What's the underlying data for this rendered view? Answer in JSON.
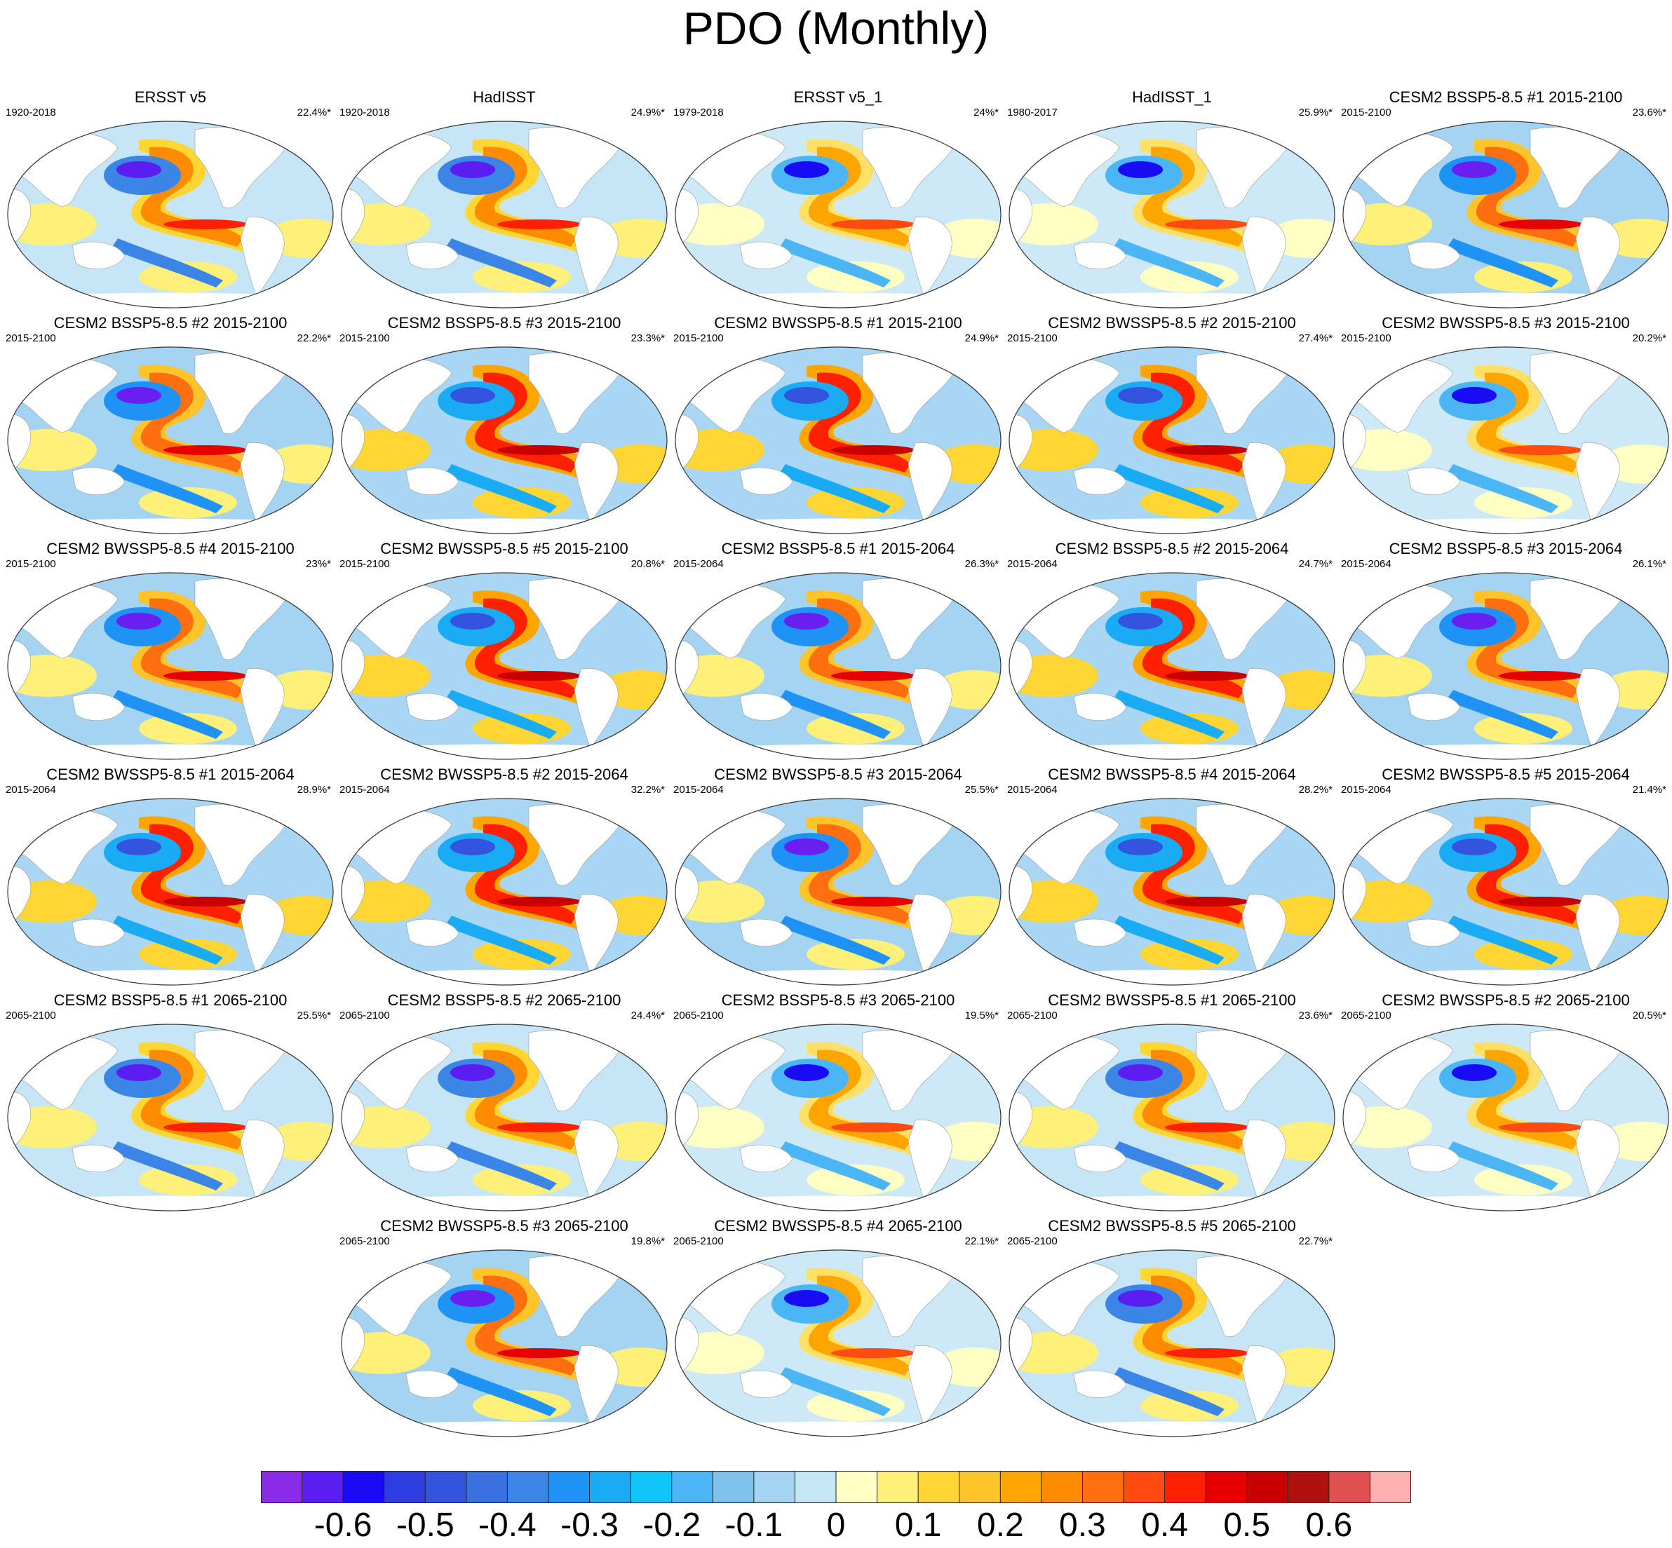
{
  "title": "PDO (Monthly)",
  "colorbar": {
    "colors": [
      "#8b2be8",
      "#5a1ef0",
      "#1a0bf5",
      "#2d3ee0",
      "#3454e0",
      "#3a6fe0",
      "#3a85e6",
      "#1f93f5",
      "#1aabf5",
      "#10c6f8",
      "#4ab6f3",
      "#7ec2ec",
      "#a4d4f2",
      "#c4e6f6",
      "#ffffc4",
      "#fff07a",
      "#ffd633",
      "#ffc42a",
      "#ffa500",
      "#ff8c00",
      "#ff6f10",
      "#ff4a10",
      "#ff2000",
      "#e60000",
      "#c80000",
      "#b01010",
      "#e05050",
      "#ffb0b0"
    ],
    "labels": [
      "-0.6",
      "-0.5",
      "-0.4",
      "-0.3",
      "-0.2",
      "-0.1",
      "0",
      "0.1",
      "0.2",
      "0.3",
      "0.4",
      "0.5",
      "0.6"
    ]
  },
  "panels": [
    {
      "title": "ERSST v5",
      "period": "1920-2018",
      "pct": "22.4%*",
      "style": 0
    },
    {
      "title": "HadISST",
      "period": "1920-2018",
      "pct": "24.9%*",
      "style": 0
    },
    {
      "title": "ERSST v5_1",
      "period": "1979-2018",
      "pct": "24%*",
      "style": 1
    },
    {
      "title": "HadISST_1",
      "period": "1980-2017",
      "pct": "25.9%*",
      "style": 1
    },
    {
      "title": "CESM2 BSSP5-8.5 #1 2015-2100",
      "period": "2015-2100",
      "pct": "23.6%*",
      "style": 2
    },
    {
      "title": "CESM2 BSSP5-8.5 #2 2015-2100",
      "period": "2015-2100",
      "pct": "22.2%*",
      "style": 2
    },
    {
      "title": "CESM2 BSSP5-8.5 #3 2015-2100",
      "period": "2015-2100",
      "pct": "23.3%*",
      "style": 3
    },
    {
      "title": "CESM2 BWSSP5-8.5 #1 2015-2100",
      "period": "2015-2100",
      "pct": "24.9%*",
      "style": 3
    },
    {
      "title": "CESM2 BWSSP5-8.5 #2 2015-2100",
      "period": "2015-2100",
      "pct": "27.4%*",
      "style": 3
    },
    {
      "title": "CESM2 BWSSP5-8.5 #3 2015-2100",
      "period": "2015-2100",
      "pct": "20.2%*",
      "style": 1
    },
    {
      "title": "CESM2 BWSSP5-8.5 #4 2015-2100",
      "period": "2015-2100",
      "pct": "23%*",
      "style": 2
    },
    {
      "title": "CESM2 BWSSP5-8.5 #5 2015-2100",
      "period": "2015-2100",
      "pct": "20.8%*",
      "style": 3
    },
    {
      "title": "CESM2 BSSP5-8.5 #1 2015-2064",
      "period": "2015-2064",
      "pct": "26.3%*",
      "style": 2
    },
    {
      "title": "CESM2 BSSP5-8.5 #2 2015-2064",
      "period": "2015-2064",
      "pct": "24.7%*",
      "style": 3
    },
    {
      "title": "CESM2 BSSP5-8.5 #3 2015-2064",
      "period": "2015-2064",
      "pct": "26.1%*",
      "style": 2
    },
    {
      "title": "CESM2 BWSSP5-8.5 #1 2015-2064",
      "period": "2015-2064",
      "pct": "28.9%*",
      "style": 3
    },
    {
      "title": "CESM2 BWSSP5-8.5 #2 2015-2064",
      "period": "2015-2064",
      "pct": "32.2%*",
      "style": 3
    },
    {
      "title": "CESM2 BWSSP5-8.5 #3 2015-2064",
      "period": "2015-2064",
      "pct": "25.5%*",
      "style": 2
    },
    {
      "title": "CESM2 BWSSP5-8.5 #4 2015-2064",
      "period": "2015-2064",
      "pct": "28.2%*",
      "style": 3
    },
    {
      "title": "CESM2 BWSSP5-8.5 #5 2015-2064",
      "period": "2015-2064",
      "pct": "21.4%*",
      "style": 3
    },
    {
      "title": "CESM2 BSSP5-8.5 #1 2065-2100",
      "period": "2065-2100",
      "pct": "25.5%*",
      "style": 0
    },
    {
      "title": "CESM2 BSSP5-8.5 #2 2065-2100",
      "period": "2065-2100",
      "pct": "24.4%*",
      "style": 0
    },
    {
      "title": "CESM2 BSSP5-8.5 #3 2065-2100",
      "period": "2065-2100",
      "pct": "19.5%*",
      "style": 1
    },
    {
      "title": "CESM2 BWSSP5-8.5 #1 2065-2100",
      "period": "2065-2100",
      "pct": "23.6%*",
      "style": 0
    },
    {
      "title": "CESM2 BWSSP5-8.5 #2 2065-2100",
      "period": "2065-2100",
      "pct": "20.5%*",
      "style": 1
    },
    {
      "title": "CESM2 BWSSP5-8.5 #3 2065-2100",
      "period": "2065-2100",
      "pct": "19.8%*",
      "style": 2
    },
    {
      "title": "CESM2 BWSSP5-8.5 #4 2065-2100",
      "period": "2065-2100",
      "pct": "22.1%*",
      "style": 1
    },
    {
      "title": "CESM2 BWSSP5-8.5 #5 2065-2100",
      "period": "2065-2100",
      "pct": "22.7%*",
      "style": 0
    }
  ]
}
